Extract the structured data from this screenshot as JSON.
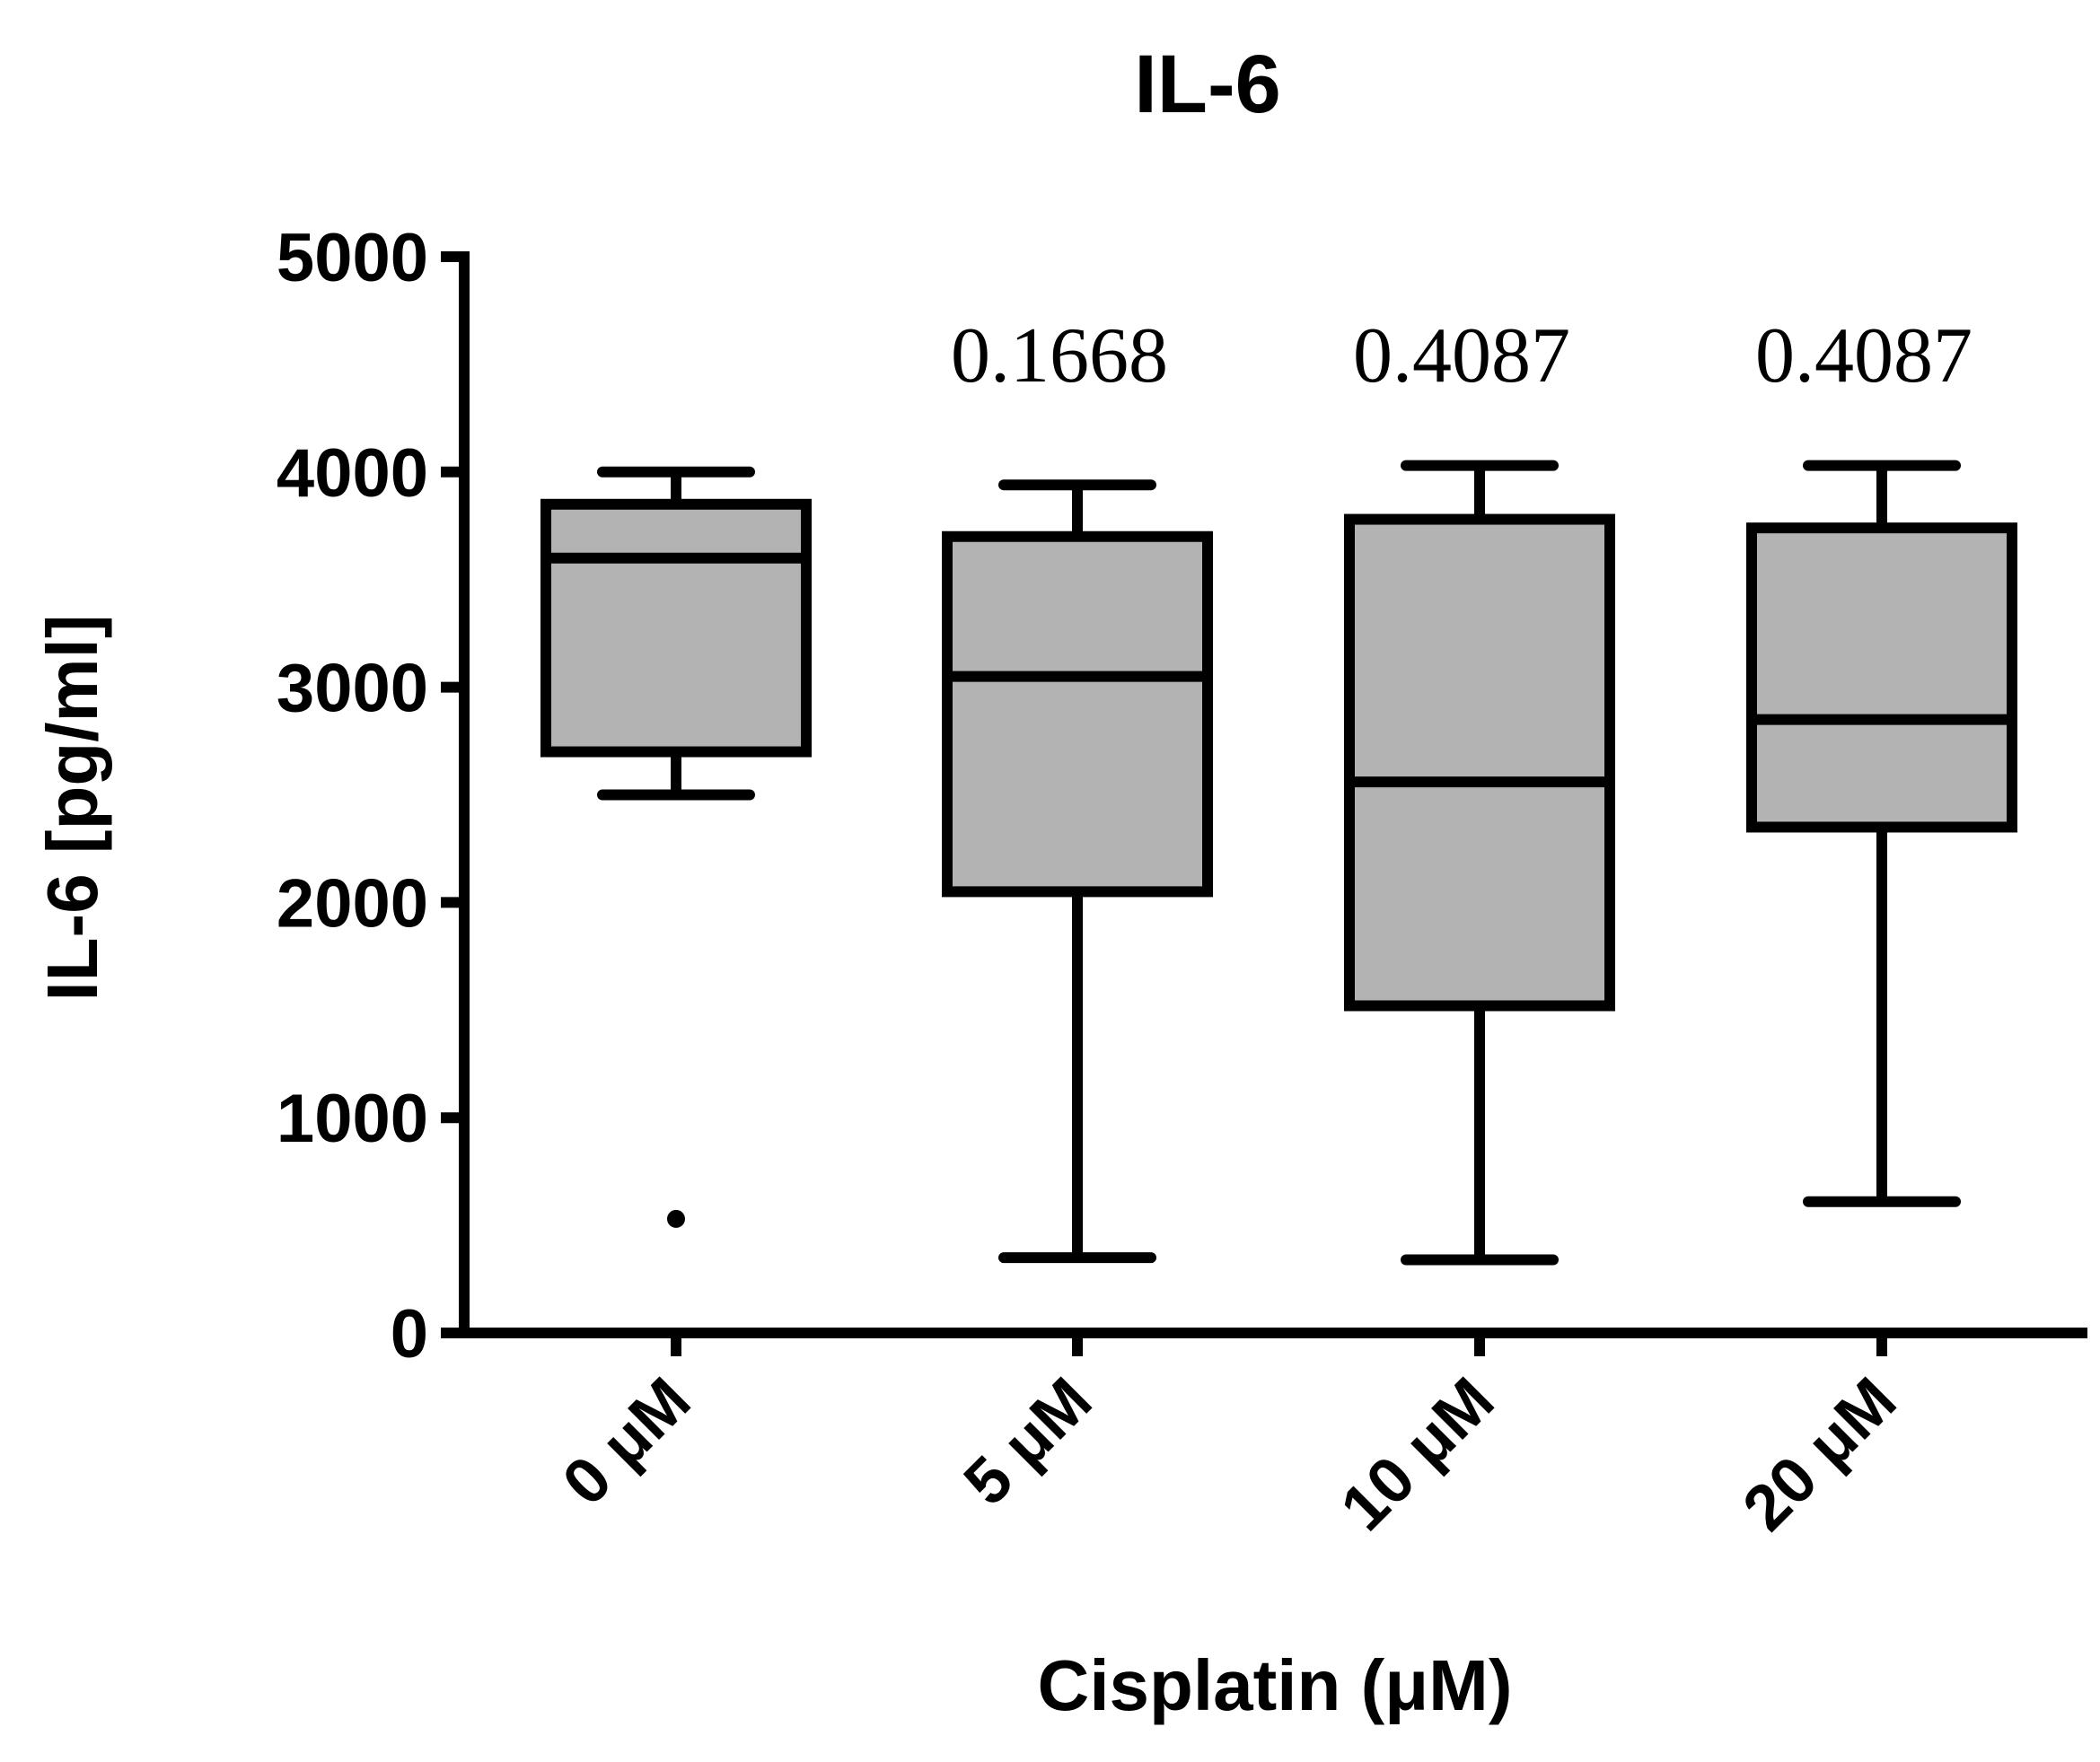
{
  "chart_data": {
    "type": "boxplot",
    "title": "IL-6",
    "xlabel": "Cisplatin (μM)",
    "ylabel": "IL-6 [pg/ml]",
    "ylim": [
      0,
      5000
    ],
    "yticks": [
      {
        "value": 0,
        "label": "0"
      },
      {
        "value": 1000,
        "label": "1000"
      },
      {
        "value": 2000,
        "label": "2000"
      },
      {
        "value": 3000,
        "label": "3000"
      },
      {
        "value": 4000,
        "label": "4000"
      },
      {
        "value": 5000,
        "label": "5000"
      }
    ],
    "categories": [
      "0 μM",
      "5 μM",
      "10 μM",
      "20 μM"
    ],
    "boxes": [
      {
        "category": "0 μM",
        "whisker_low": 2500,
        "q1": 2700,
        "median": 3600,
        "q3": 3850,
        "whisker_high": 4000,
        "outliers": [
          530
        ],
        "p_value": ""
      },
      {
        "category": "5 μM",
        "whisker_low": 350,
        "q1": 2050,
        "median": 3050,
        "q3": 3700,
        "whisker_high": 3940,
        "outliers": [],
        "p_value": "0.1668"
      },
      {
        "category": "10 μM",
        "whisker_low": 340,
        "q1": 1520,
        "median": 2560,
        "q3": 3780,
        "whisker_high": 4030,
        "outliers": [],
        "p_value": "0.4087"
      },
      {
        "category": "20 μM",
        "whisker_low": 610,
        "q1": 2350,
        "median": 2850,
        "q3": 3740,
        "whisker_high": 4030,
        "outliers": [],
        "p_value": "0.4087"
      }
    ],
    "colors": {
      "box_fill": "#b3b3b3",
      "stroke": "#000000"
    }
  }
}
